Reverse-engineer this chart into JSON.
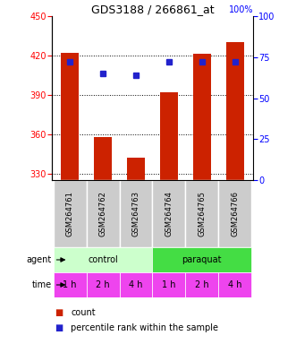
{
  "title": "GDS3188 / 266861_at",
  "samples": [
    "GSM264761",
    "GSM264762",
    "GSM264763",
    "GSM264764",
    "GSM264765",
    "GSM264766"
  ],
  "counts": [
    422,
    358,
    342,
    392,
    421,
    430
  ],
  "percentiles": [
    72,
    65,
    64,
    72,
    72,
    72
  ],
  "ylim_left": [
    325,
    450
  ],
  "ylim_right": [
    0,
    100
  ],
  "yticks_left": [
    330,
    360,
    390,
    420,
    450
  ],
  "yticks_right": [
    0,
    25,
    50,
    75,
    100
  ],
  "bar_color": "#cc2200",
  "dot_color": "#2222cc",
  "agent_groups": [
    {
      "label": "control",
      "cols": [
        0,
        1,
        2
      ],
      "color": "#ccffcc"
    },
    {
      "label": "paraquat",
      "cols": [
        3,
        4,
        5
      ],
      "color": "#44dd44"
    }
  ],
  "time_labels": [
    "1 h",
    "2 h",
    "4 h",
    "1 h",
    "2 h",
    "4 h"
  ],
  "time_color": "#ee44ee",
  "gsm_bg": "#cccccc",
  "legend_bar_color": "#cc2200",
  "legend_dot_color": "#2222cc",
  "legend_bar_label": "count",
  "legend_dot_label": "percentile rank within the sample",
  "agent_label": "agent",
  "time_label": "time"
}
